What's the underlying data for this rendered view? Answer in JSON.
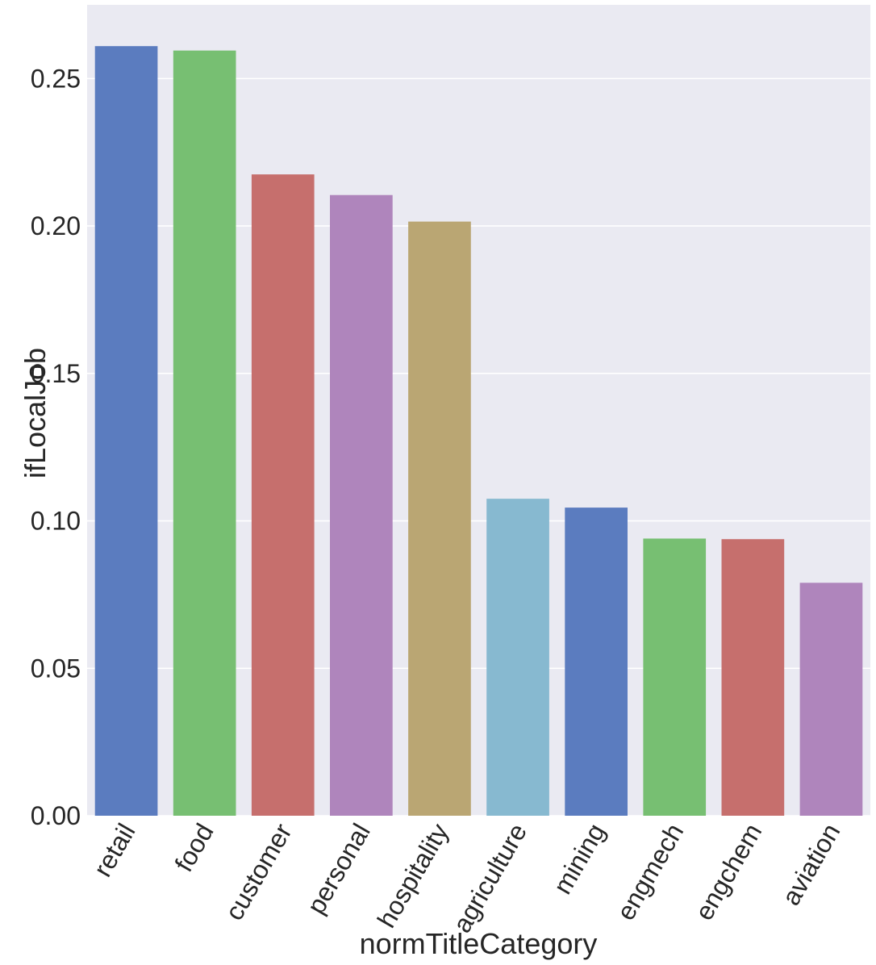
{
  "chart_data": {
    "type": "bar",
    "categories": [
      "retail",
      "food",
      "customer",
      "personal",
      "hospitality",
      "agriculture",
      "mining",
      "engmech",
      "engchem",
      "aviation"
    ],
    "values": [
      0.261,
      0.2595,
      0.2175,
      0.2105,
      0.2015,
      0.1075,
      0.1045,
      0.094,
      0.0938,
      0.079
    ],
    "colors": [
      "#5b7cbf",
      "#77bf72",
      "#c66f6d",
      "#af85bc",
      "#baa673",
      "#87b9d0",
      "#5b7cbf",
      "#77bf72",
      "#c66f6d",
      "#af85bc"
    ],
    "xlabel": "normTitleCategory",
    "ylabel": "ifLocalJob",
    "ylim": [
      0,
      0.275
    ],
    "yticks": [
      "0.00",
      "0.05",
      "0.10",
      "0.15",
      "0.20",
      "0.25"
    ],
    "grid": true,
    "background": "#eaeaf2",
    "grid_color": "#ffffff"
  }
}
